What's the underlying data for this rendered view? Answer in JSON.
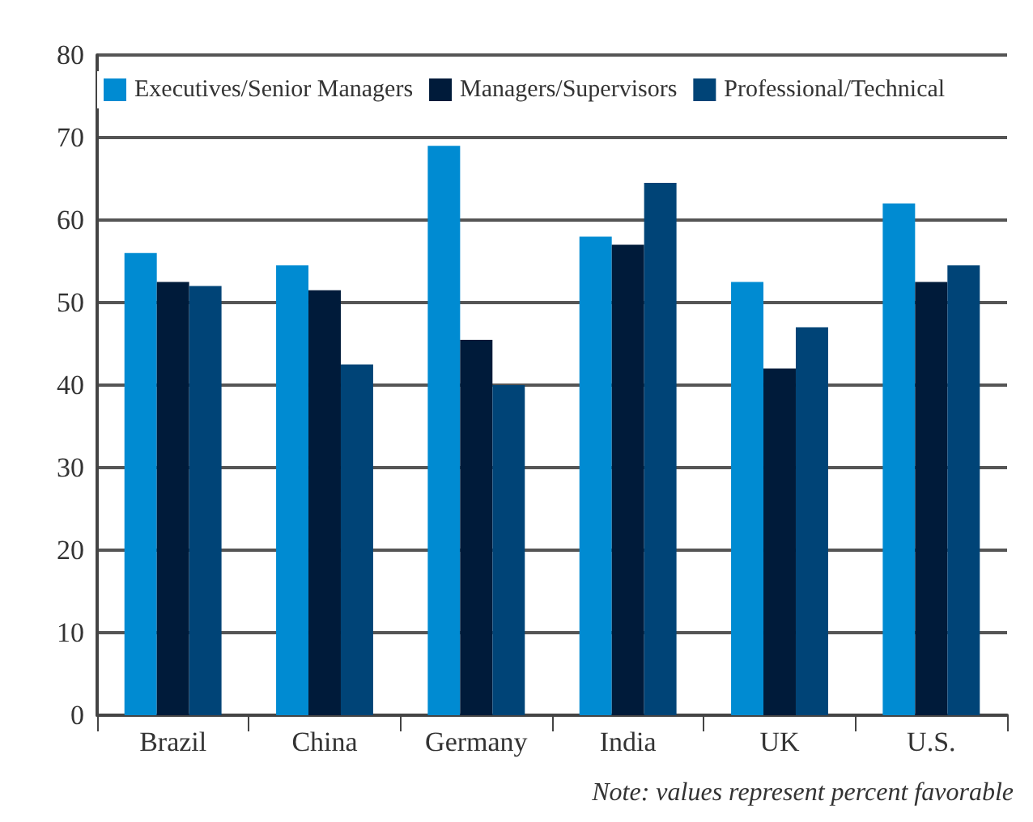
{
  "chart_data": {
    "type": "bar",
    "categories": [
      "Brazil",
      "China",
      "Germany",
      "India",
      "UK",
      "U.S."
    ],
    "series": [
      {
        "name": "Executives/Senior Managers",
        "color": "#008bd2",
        "values": [
          56,
          54.5,
          69,
          58,
          52.5,
          62
        ]
      },
      {
        "name": "Managers/Supervisors",
        "color": "#001b3a",
        "values": [
          52.5,
          51.5,
          45.5,
          57,
          42,
          52.5
        ]
      },
      {
        "name": "Professional/Technical",
        "color": "#004477",
        "values": [
          52,
          42.5,
          40,
          64.5,
          47,
          54.5
        ]
      }
    ],
    "ylim": [
      0,
      80
    ],
    "yticks": [
      0,
      10,
      20,
      30,
      40,
      50,
      60,
      70,
      80
    ],
    "grid": "y",
    "legend": "top",
    "annotations": [
      "Note: values represent percent favorable"
    ]
  }
}
